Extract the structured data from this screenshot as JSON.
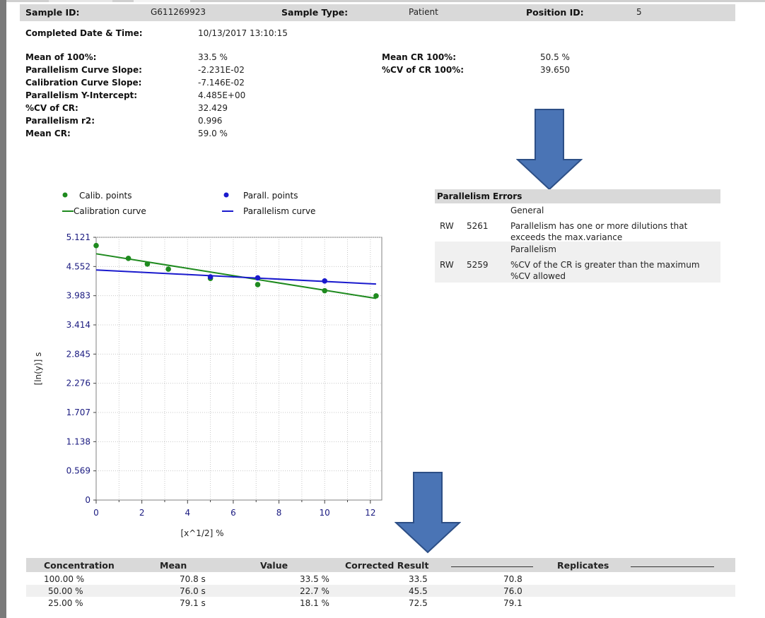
{
  "header": {
    "sample_id_label": "Sample ID:",
    "sample_id_value": "G611269923",
    "sample_type_label": "Sample Type:",
    "sample_type_value": "Patient",
    "position_id_label": "Position ID:",
    "position_id_value": "5"
  },
  "completed": {
    "label": "Completed Date & Time:",
    "value": "10/13/2017 13:10:15"
  },
  "metrics_left": [
    {
      "label": "Mean of 100%:",
      "value": "33.5 %"
    },
    {
      "label": "Parallelism Curve Slope:",
      "value": "-2.231E-02"
    },
    {
      "label": "Calibration Curve Slope:",
      "value": "-7.146E-02"
    },
    {
      "label": "Parallelism Y-Intercept:",
      "value": "4.485E+00"
    },
    {
      "label": "%CV of CR:",
      "value": "32.429"
    },
    {
      "label": "Parallelism r2:",
      "value": "0.996"
    },
    {
      "label": "Mean CR:",
      "value": "59.0 %"
    }
  ],
  "metrics_right": [
    {
      "label": "Mean CR 100%:",
      "value": "50.5 %"
    },
    {
      "label": "%CV of CR 100%:",
      "value": "39.650"
    }
  ],
  "errors": {
    "title": "Parallelism Errors",
    "items": [
      {
        "category": "General",
        "code_type": "RW",
        "code": "5261",
        "line1": "Parallelism has one or more dilutions that",
        "line2": "exceeds the max.variance"
      },
      {
        "category": "Parallelism",
        "code_type": "RW",
        "code": "5259",
        "line1": "%CV of the CR is greater than the maximum",
        "line2": "%CV allowed"
      }
    ]
  },
  "colors": {
    "calibration": "#1e8a1e",
    "parallelism": "#1a1acd",
    "arrow_fill": "#4a74b5",
    "arrow_stroke": "#2d4f86",
    "band": "#d9d9d9"
  },
  "chart_data": {
    "type": "scatter",
    "xlabel": "[x^1/2] %",
    "ylabel": "[ln(y)] s",
    "xlim": [
      0,
      12.5
    ],
    "ylim": [
      0,
      5.121
    ],
    "x_ticks": [
      "0",
      "2",
      "4",
      "6",
      "8",
      "10",
      "12"
    ],
    "y_ticks": [
      "0",
      "0.569",
      "1.138",
      "1.707",
      "2.276",
      "2.845",
      "3.414",
      "3.983",
      "4.552",
      "5.121"
    ],
    "legend": [
      {
        "name": "Calib. points",
        "kind": "point",
        "color": "#1e8a1e"
      },
      {
        "name": "Parall. points",
        "kind": "point",
        "color": "#1a1acd"
      },
      {
        "name": "Calibration curve",
        "kind": "line",
        "color": "#1e8a1e"
      },
      {
        "name": "Parallelism curve",
        "kind": "line",
        "color": "#1a1acd"
      }
    ],
    "series": [
      {
        "name": "Calib. points",
        "kind": "scatter",
        "color": "#1e8a1e",
        "x": [
          0,
          1.41,
          2.24,
          3.16,
          5.0,
          7.07,
          10.0,
          12.25
        ],
        "y": [
          4.96,
          4.71,
          4.6,
          4.5,
          4.32,
          4.2,
          4.08,
          3.98
        ]
      },
      {
        "name": "Parall. points",
        "kind": "scatter",
        "color": "#1a1acd",
        "x": [
          5.0,
          7.07,
          10.0
        ],
        "y": [
          4.35,
          4.33,
          4.27
        ]
      },
      {
        "name": "Calibration curve",
        "kind": "line",
        "color": "#1e8a1e",
        "x": [
          0,
          12.25
        ],
        "y": [
          4.8,
          3.93
        ]
      },
      {
        "name": "Parallelism curve",
        "kind": "line",
        "color": "#1a1acd",
        "x": [
          0,
          12.25
        ],
        "y": [
          4.485,
          4.21
        ]
      }
    ]
  },
  "results_table": {
    "headers": [
      "Concentration",
      "Mean",
      "Value",
      "Corrected Result",
      "Replicates"
    ],
    "rows": [
      {
        "concentration": "100.00 %",
        "mean": "70.8 s",
        "value": "33.5 %",
        "corrected": "33.5",
        "replicate": "70.8"
      },
      {
        "concentration": "50.00 %",
        "mean": "76.0 s",
        "value": "22.7 %",
        "corrected": "45.5",
        "replicate": "76.0"
      },
      {
        "concentration": "25.00 %",
        "mean": "79.1 s",
        "value": "18.1 %",
        "corrected": "72.5",
        "replicate": "79.1"
      }
    ]
  }
}
